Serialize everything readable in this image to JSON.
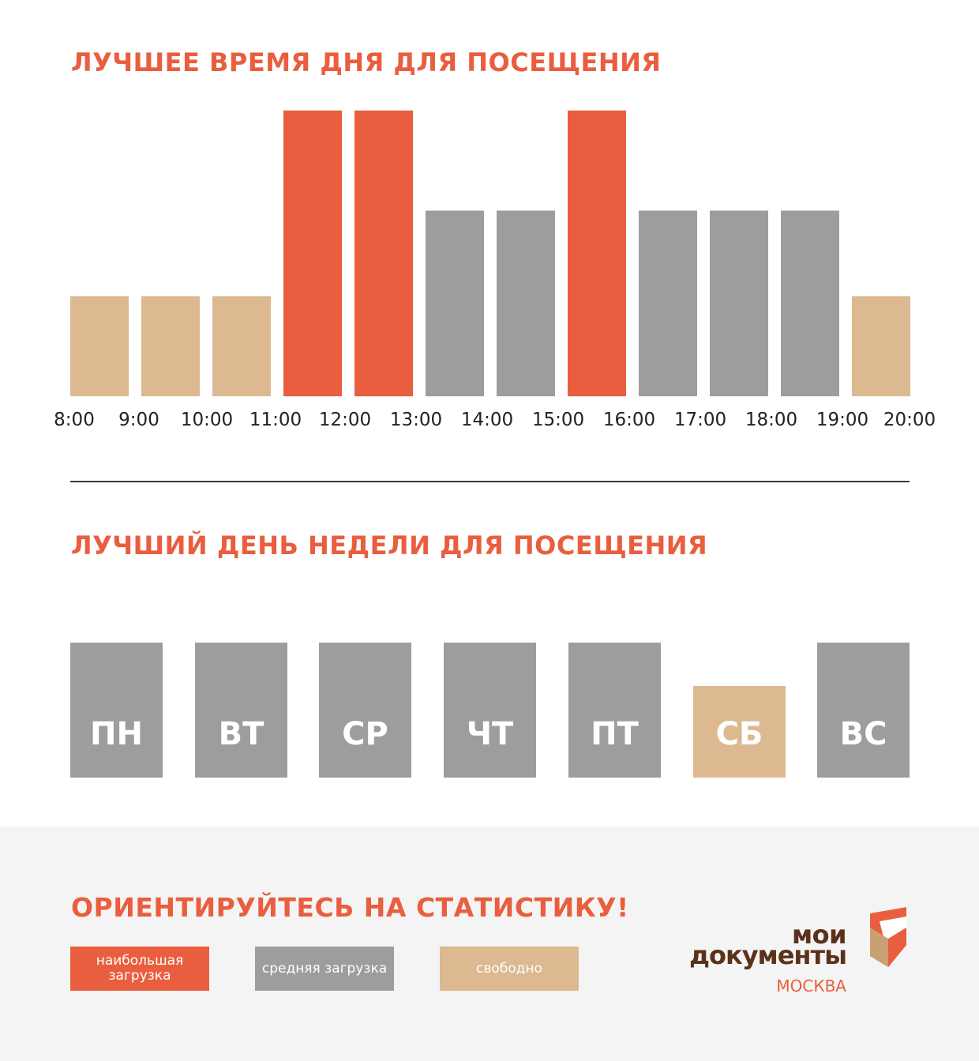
{
  "colors": {
    "high": "#e95e3e",
    "medium": "#9d9d9d",
    "free": "#dcb991",
    "brown": "#5a3219"
  },
  "title_time": "ЛУЧШЕЕ ВРЕМЯ ДНЯ ДЛЯ ПОСЕЩЕНИЯ",
  "title_week": "ЛУЧШИЙ ДЕНЬ НЕДЕЛИ ДЛЯ ПОСЕЩЕНИЯ",
  "footer": {
    "title": "ОРИЕНТИРУЙТЕСЬ НА СТАТИСТИКУ!",
    "legend": {
      "high": "наибольшая загрузка",
      "medium": "средняя загрузка",
      "free": "свободно"
    },
    "logo": {
      "line1": "мои",
      "line2": "документы",
      "city": "МОСКВА"
    }
  },
  "chart_data": [
    {
      "type": "bar",
      "ticks": [
        "8:00",
        "9:00",
        "10:00",
        "11:00",
        "12:00",
        "13:00",
        "14:00",
        "15:00",
        "16:00",
        "17:00",
        "18:00",
        "19:00",
        "20:00"
      ],
      "values": [
        1,
        1,
        1,
        3,
        3,
        2,
        2,
        3,
        2,
        2,
        2,
        1
      ],
      "levels": [
        "free",
        "free",
        "free",
        "high",
        "high",
        "medium",
        "medium",
        "high",
        "medium",
        "medium",
        "medium",
        "free"
      ],
      "ylim": [
        0,
        3
      ]
    },
    {
      "type": "bar",
      "categories": [
        "ПН",
        "ВТ",
        "СР",
        "ЧТ",
        "ПТ",
        "СБ",
        "ВС"
      ],
      "values": [
        2,
        2,
        2,
        2,
        2,
        1,
        2
      ],
      "levels": [
        "medium",
        "medium",
        "medium",
        "medium",
        "medium",
        "free",
        "medium"
      ],
      "ylim": [
        0,
        2
      ]
    }
  ]
}
